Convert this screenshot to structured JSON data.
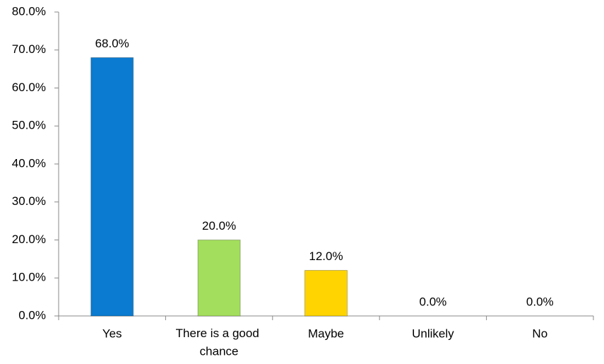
{
  "chart_data": {
    "type": "bar",
    "categories": [
      "Yes",
      "There is a good chance",
      "Maybe",
      "Unlikely",
      "No"
    ],
    "values": [
      68,
      20,
      12,
      0,
      0
    ],
    "value_labels": [
      "68.0%",
      "20.0%",
      "12.0%",
      "0.0%",
      "0.0%"
    ],
    "colors": [
      "#0a7bd0",
      "#a3de5c",
      "#ffd400",
      "#0a7bd0",
      "#0a7bd0"
    ],
    "ylim": [
      0,
      80
    ],
    "yticks": [
      {
        "value": 0,
        "label": "0.0%"
      },
      {
        "value": 10,
        "label": "10.0%"
      },
      {
        "value": 20,
        "label": "20.0%"
      },
      {
        "value": 30,
        "label": "30.0%"
      },
      {
        "value": 40,
        "label": "40.0%"
      },
      {
        "value": 50,
        "label": "50.0%"
      },
      {
        "value": 60,
        "label": "60.0%"
      },
      {
        "value": 70,
        "label": "70.0%"
      },
      {
        "value": 80,
        "label": "80.0%"
      }
    ],
    "grid": false
  }
}
